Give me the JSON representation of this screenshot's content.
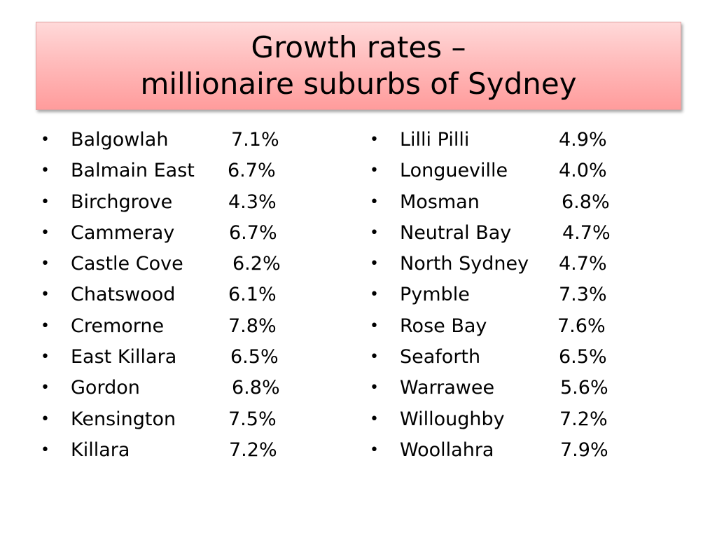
{
  "title": {
    "line1": "Growth rates –",
    "line2": "millionaire suburbs of Sydney"
  },
  "colors": {
    "title_fill_top": "#ffd9d9",
    "title_fill_bottom": "#ff9c9c",
    "text": "#000000"
  },
  "bullet_glyph": "•",
  "left_column": [
    {
      "suburb": "Balgowlah",
      "rate": "7.1%"
    },
    {
      "suburb": "Balmain East",
      "rate": "6.7%"
    },
    {
      "suburb": "Birchgrove",
      "rate": "4.3%"
    },
    {
      "suburb": "Cammeray",
      "rate": "6.7%"
    },
    {
      "suburb": "Castle Cove",
      "rate": "6.2%"
    },
    {
      "suburb": "Chatswood",
      "rate": "6.1%"
    },
    {
      "suburb": "Cremorne",
      "rate": "7.8%"
    },
    {
      "suburb": "East Killara",
      "rate": "6.5%"
    },
    {
      "suburb": "Gordon",
      "rate": "6.8%"
    },
    {
      "suburb": "Kensington",
      "rate": "7.5%"
    },
    {
      "suburb": "Killara",
      "rate": "7.2%"
    }
  ],
  "right_column": [
    {
      "suburb": "Lilli Pilli",
      "rate": "4.9%"
    },
    {
      "suburb": "Longueville",
      "rate": "4.0%"
    },
    {
      "suburb": "Mosman",
      "rate": "6.8%"
    },
    {
      "suburb": "Neutral Bay",
      "rate": "4.7%"
    },
    {
      "suburb": "North Sydney",
      "rate": "4.7%"
    },
    {
      "suburb": "Pymble",
      "rate": "7.3%"
    },
    {
      "suburb": "Rose Bay",
      "rate": "7.6%"
    },
    {
      "suburb": "Seaforth",
      "rate": "6.5%"
    },
    {
      "suburb": "Warrawee",
      "rate": "5.6%"
    },
    {
      "suburb": "Willoughby",
      "rate": "7.2%"
    },
    {
      "suburb": "Woollahra",
      "rate": "7.9%"
    }
  ]
}
